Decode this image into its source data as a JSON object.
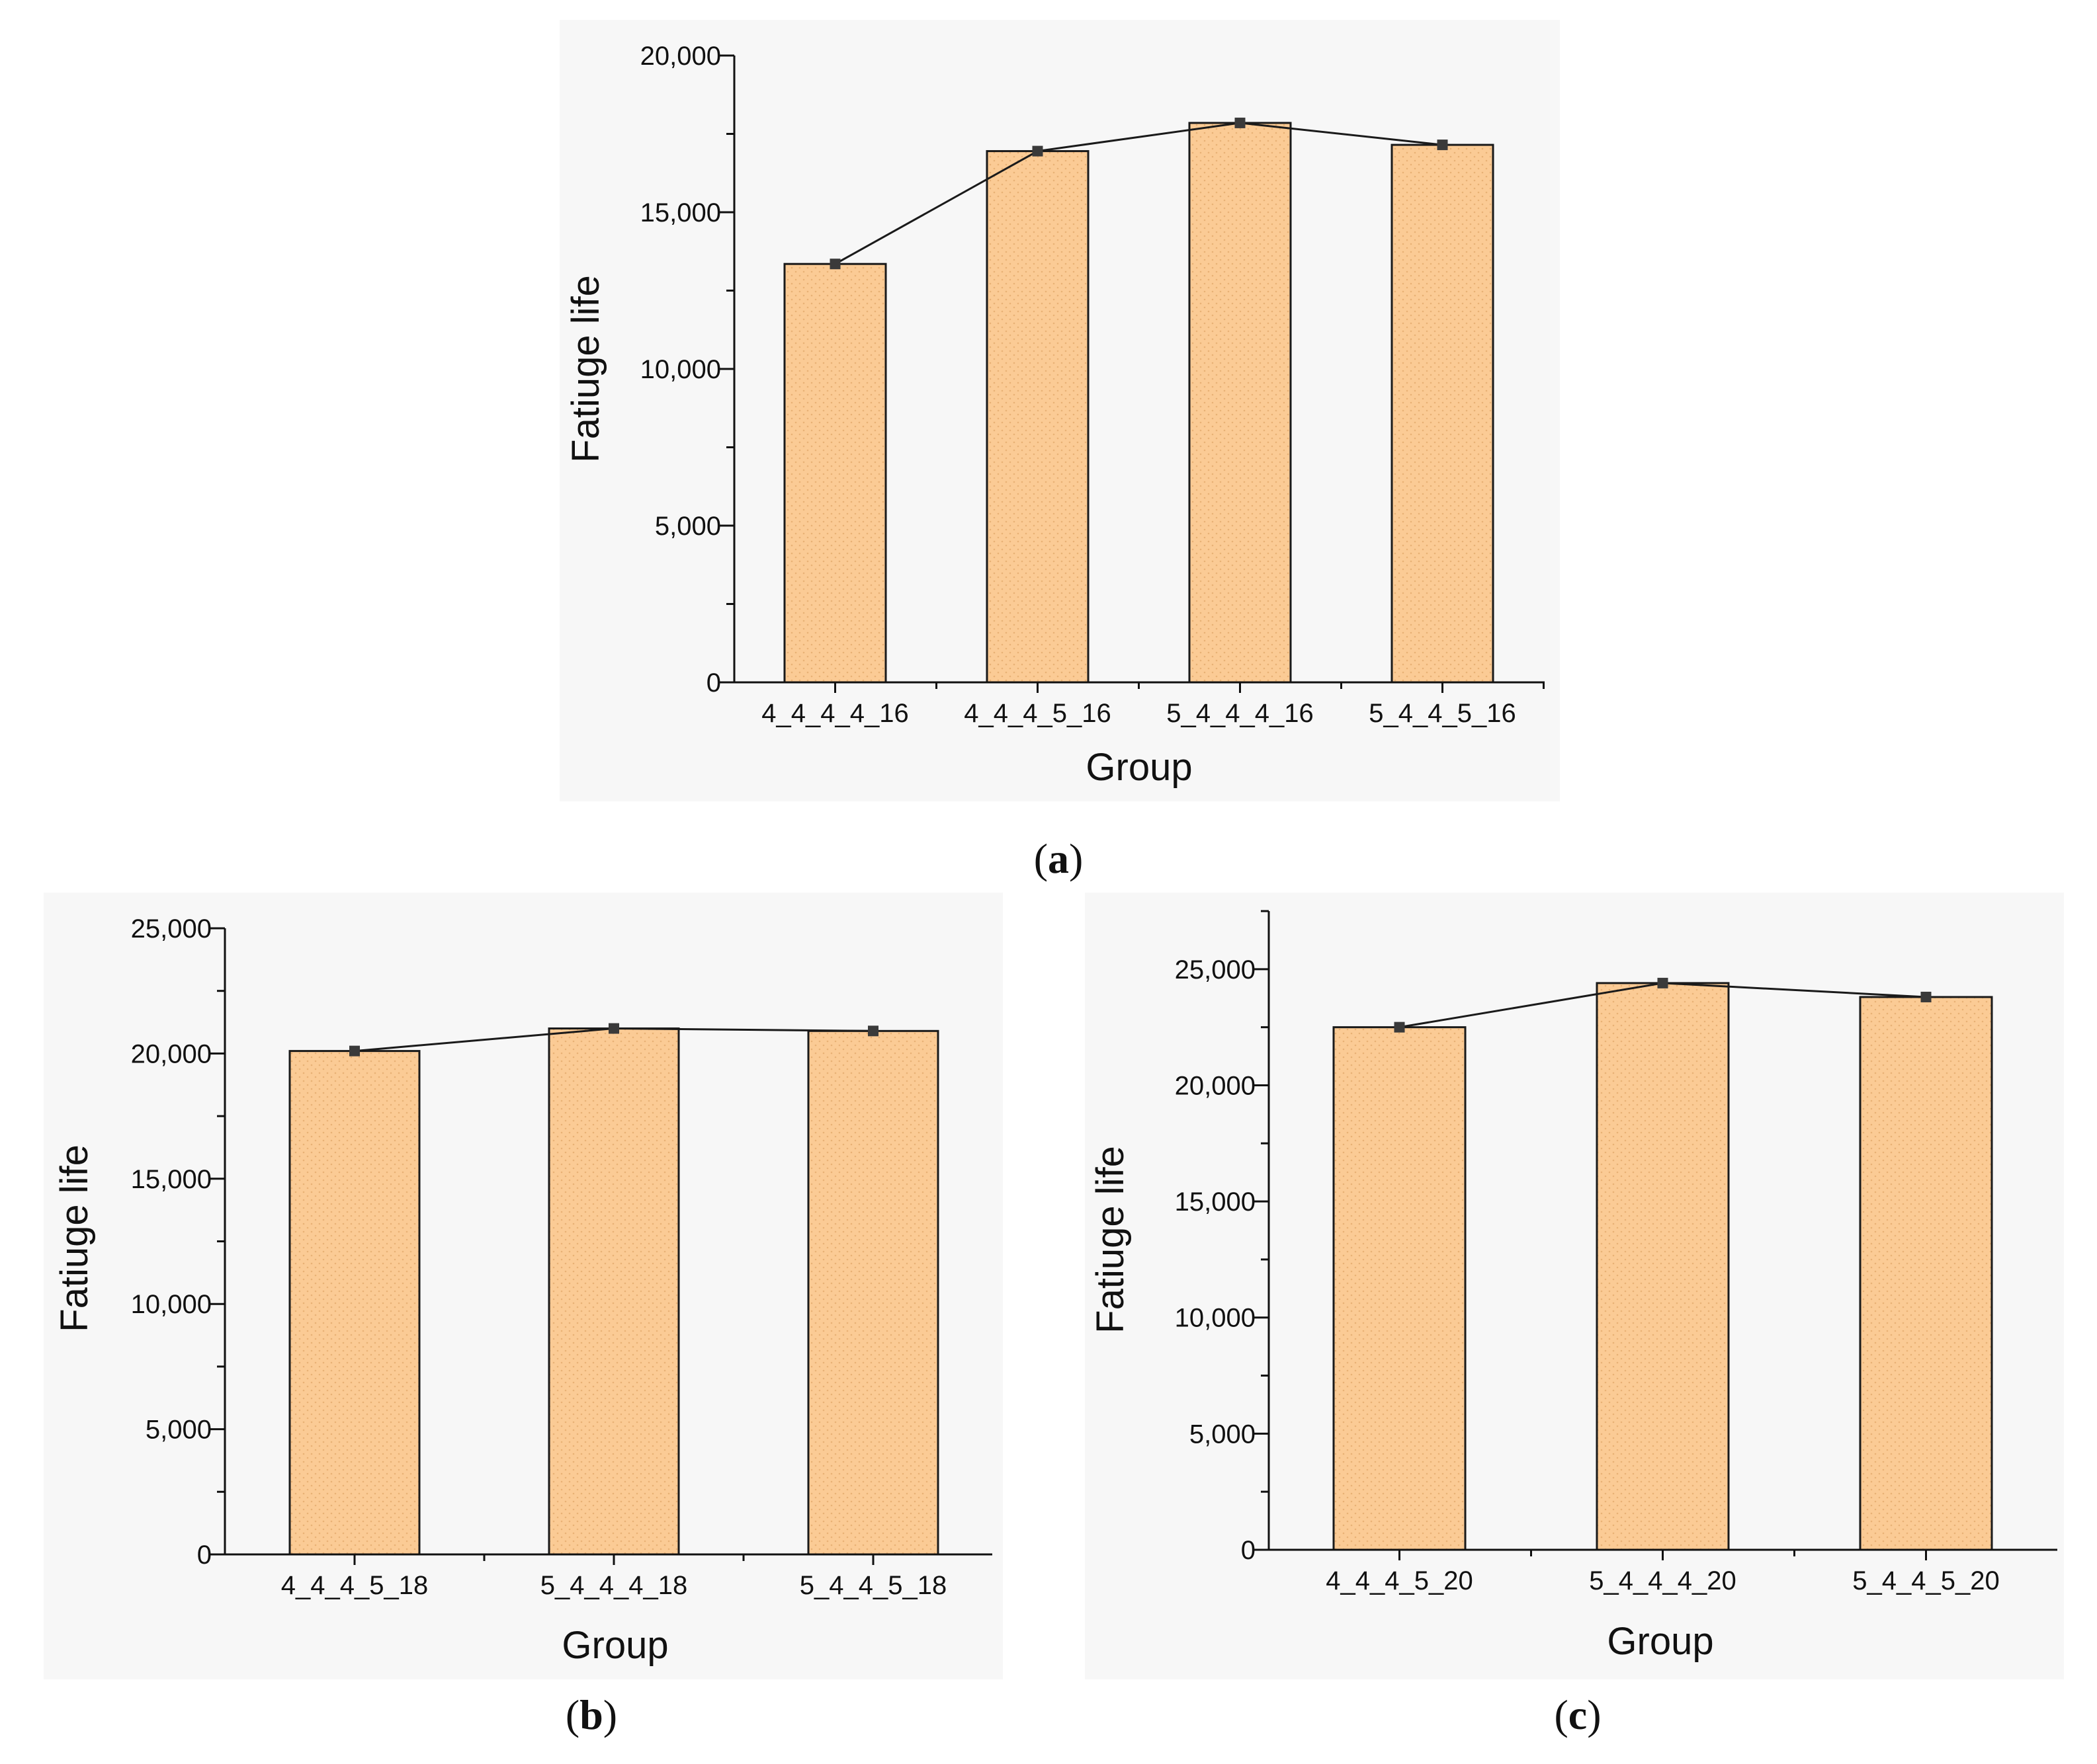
{
  "figure": {
    "colors": {
      "bar_fill": "#fbcb95",
      "bar_stroke": "#1a1a1a",
      "line": "#1a1a1a",
      "marker": "#3a3a3a",
      "panel_bg": "#f7f7f7"
    }
  },
  "chart_data": [
    {
      "id": "a",
      "type": "bar",
      "caption": "(a)",
      "caption_letter": "a",
      "title": "",
      "xlabel": "Group",
      "ylabel": "Fatiuge life",
      "categories": [
        "4_4_4_4_16",
        "4_4_4_5_16",
        "5_4_4_4_16",
        "5_4_4_5_16"
      ],
      "values": [
        13350,
        16950,
        17850,
        17150
      ],
      "overlay_line": true,
      "ylim": [
        0,
        20000
      ],
      "yticks": [
        0,
        5000,
        10000,
        15000,
        20000
      ],
      "ytick_labels": [
        "0",
        "5,000",
        "10,000",
        "15,000",
        "20,000"
      ],
      "grid": false
    },
    {
      "id": "b",
      "type": "bar",
      "caption": "(b)",
      "caption_letter": "b",
      "title": "",
      "xlabel": "Group",
      "ylabel": "Fatiuge life",
      "categories": [
        "4_4_4_5_18",
        "5_4_4_4_18",
        "5_4_4_5_18"
      ],
      "values": [
        20100,
        21000,
        20900
      ],
      "overlay_line": true,
      "ylim": [
        0,
        25000
      ],
      "yticks": [
        0,
        5000,
        10000,
        15000,
        20000,
        25000
      ],
      "ytick_labels": [
        "0",
        "5,000",
        "10,000",
        "15,000",
        "20,000",
        "25,000"
      ],
      "grid": false
    },
    {
      "id": "c",
      "type": "bar",
      "caption": "(c)",
      "caption_letter": "c",
      "title": "",
      "xlabel": "Group",
      "ylabel": "Fatiuge life",
      "categories": [
        "4_4_4_5_20",
        "5_4_4_4_20",
        "5_4_4_5_20"
      ],
      "values": [
        22500,
        24400,
        23800
      ],
      "overlay_line": true,
      "ylim": [
        0,
        27500
      ],
      "yticks": [
        0,
        5000,
        10000,
        15000,
        20000,
        25000
      ],
      "ytick_labels": [
        "0",
        "5,000",
        "10,000",
        "15,000",
        "20,000",
        "25,000"
      ],
      "grid": false
    }
  ]
}
